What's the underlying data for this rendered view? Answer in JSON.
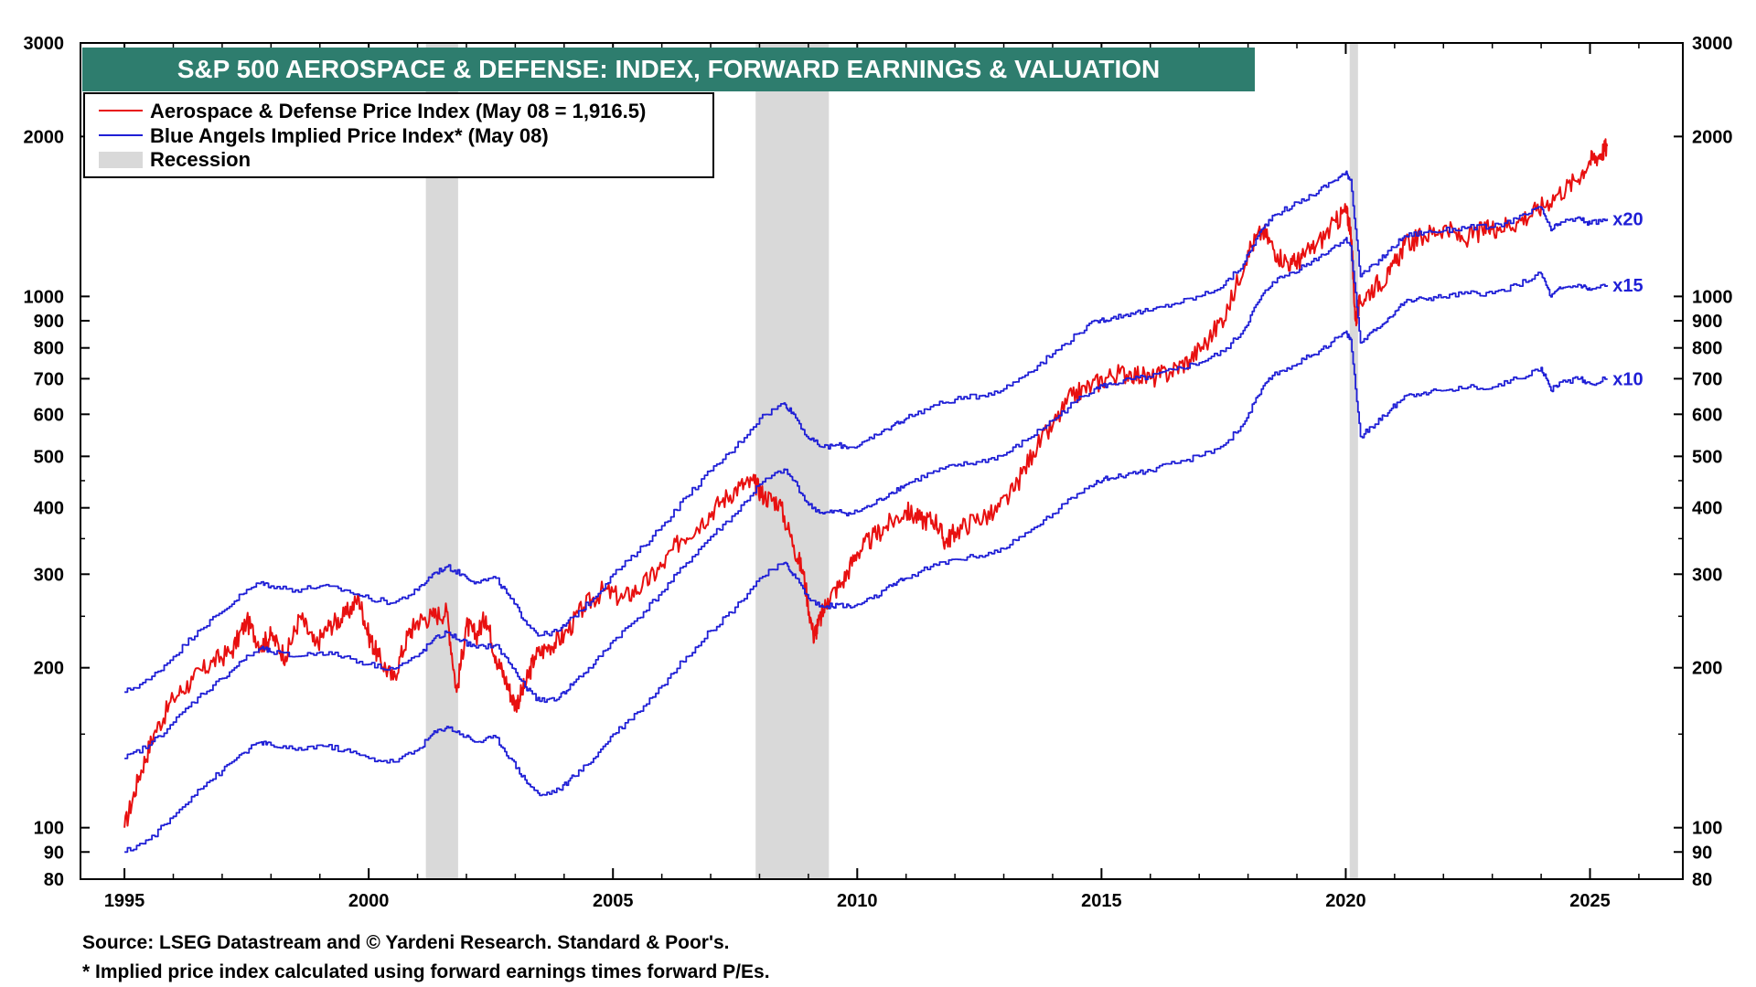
{
  "chart_data": {
    "type": "line",
    "title": "S&P 500 AEROSPACE & DEFENSE: INDEX, FORWARD EARNINGS & VALUATION",
    "y_scale": "log",
    "ylim": [
      80,
      3000
    ],
    "xlim": [
      1994.1,
      2026.9
    ],
    "y_ticks": [
      80,
      90,
      100,
      200,
      300,
      400,
      500,
      600,
      700,
      800,
      900,
      1000,
      2000,
      3000
    ],
    "y_tick_labels": [
      "80",
      "90",
      "100",
      "200",
      "300",
      "400",
      "500",
      "600",
      "700",
      "800",
      "900",
      "1000",
      "2000",
      "3000"
    ],
    "x_ticks": [
      1995,
      2000,
      2005,
      2010,
      2015,
      2020,
      2025
    ],
    "x_tick_labels": [
      "1995",
      "2000",
      "2005",
      "2010",
      "2015",
      "2020",
      "2025"
    ],
    "colors": {
      "price": "#e81010",
      "implied": "#1f1fd6",
      "recession": "#d9d9d9",
      "title_bg": "#2e7d6e"
    },
    "legend": [
      {
        "label": "Aerospace & Defense Price Index (May 08 = 1,916.5)",
        "kind": "line",
        "color": "#e81010"
      },
      {
        "label": "Blue Angels Implied Price Index* (May 08)",
        "kind": "line",
        "color": "#1f1fd6"
      },
      {
        "label": "Recession",
        "kind": "band",
        "color": "#d9d9d9"
      }
    ],
    "recessions": [
      {
        "start": 2001.17,
        "end": 2001.83
      },
      {
        "start": 2007.92,
        "end": 2009.42
      },
      {
        "start": 2020.08,
        "end": 2020.25
      }
    ],
    "series": [
      {
        "name": "Aerospace & Defense Price Index",
        "color": "#e81010",
        "x": [
          1995.0,
          1995.3,
          1995.6,
          1996.0,
          1996.4,
          1996.8,
          1997.2,
          1997.5,
          1997.8,
          1998.0,
          1998.3,
          1998.6,
          1998.9,
          1999.2,
          1999.5,
          1999.8,
          2000.0,
          2000.2,
          2000.5,
          2000.8,
          2001.0,
          2001.3,
          2001.6,
          2001.8,
          2002.0,
          2002.2,
          2002.4,
          2002.6,
          2002.8,
          2003.0,
          2003.2,
          2003.4,
          2003.7,
          2004.0,
          2004.4,
          2004.8,
          2005.2,
          2005.6,
          2006.0,
          2006.4,
          2006.8,
          2007.2,
          2007.6,
          2007.9,
          2008.1,
          2008.4,
          2008.7,
          2008.9,
          2009.1,
          2009.2,
          2009.4,
          2009.7,
          2010.0,
          2010.3,
          2010.6,
          2011.0,
          2011.3,
          2011.6,
          2011.8,
          2012.0,
          2012.4,
          2012.8,
          2013.2,
          2013.6,
          2014.0,
          2014.4,
          2014.8,
          2015.2,
          2015.6,
          2016.0,
          2016.4,
          2016.8,
          2017.2,
          2017.6,
          2018.0,
          2018.3,
          2018.6,
          2018.9,
          2019.1,
          2019.4,
          2019.8,
          2020.0,
          2020.1,
          2020.2,
          2020.3,
          2020.6,
          2020.9,
          2021.2,
          2021.6,
          2022.0,
          2022.4,
          2022.8,
          2023.1,
          2023.5,
          2023.9,
          2024.3,
          2024.7,
          2025.0,
          2025.2,
          2025.35
        ],
        "values": [
          100,
          125,
          150,
          175,
          190,
          205,
          215,
          245,
          220,
          230,
          210,
          250,
          220,
          240,
          250,
          270,
          230,
          210,
          190,
          230,
          245,
          250,
          255,
          180,
          240,
          230,
          250,
          210,
          190,
          170,
          185,
          210,
          220,
          230,
          260,
          280,
          270,
          285,
          310,
          350,
          375,
          410,
          440,
          445,
          420,
          410,
          340,
          300,
          230,
          240,
          270,
          290,
          330,
          350,
          370,
          395,
          380,
          380,
          345,
          360,
          380,
          390,
          430,
          510,
          570,
          650,
          680,
          710,
          720,
          700,
          720,
          760,
          830,
          950,
          1220,
          1330,
          1200,
          1150,
          1180,
          1250,
          1380,
          1450,
          1350,
          900,
          980,
          1050,
          1100,
          1250,
          1300,
          1350,
          1280,
          1330,
          1350,
          1380,
          1450,
          1550,
          1650,
          1800,
          1850,
          1916.5
        ]
      },
      {
        "name": "Blue Angels Implied Price Index x20",
        "color": "#1f1fd6",
        "label": "x20",
        "x": [
          1995.0,
          1995.5,
          1996.0,
          1996.5,
          1997.0,
          1997.4,
          1997.8,
          1998.0,
          1998.5,
          1999.0,
          1999.5,
          2000.0,
          2000.5,
          2001.0,
          2001.3,
          2001.6,
          2001.9,
          2002.2,
          2002.6,
          2002.9,
          2003.2,
          2003.5,
          2003.9,
          2004.2,
          2004.6,
          2005.0,
          2005.5,
          2006.0,
          2006.5,
          2007.0,
          2007.5,
          2008.0,
          2008.5,
          2008.7,
          2009.0,
          2009.3,
          2009.6,
          2009.9,
          2010.3,
          2010.7,
          2011.0,
          2011.5,
          2012.0,
          2012.5,
          2013.0,
          2013.5,
          2014.0,
          2014.5,
          2014.9,
          2015.2,
          2015.6,
          2016.0,
          2016.5,
          2017.0,
          2017.5,
          2017.9,
          2018.2,
          2018.5,
          2018.9,
          2019.3,
          2019.7,
          2020.0,
          2020.1,
          2020.3,
          2020.6,
          2020.9,
          2021.2,
          2021.6,
          2022.0,
          2022.5,
          2023.0,
          2023.5,
          2024.0,
          2024.2,
          2024.4,
          2024.8,
          2025.0,
          2025.35
        ],
        "values": [
          180,
          190,
          210,
          235,
          255,
          275,
          290,
          285,
          280,
          285,
          280,
          270,
          265,
          280,
          300,
          310,
          300,
          290,
          295,
          270,
          245,
          230,
          235,
          250,
          270,
          300,
          330,
          370,
          420,
          470,
          520,
          590,
          630,
          600,
          540,
          520,
          525,
          520,
          540,
          570,
          590,
          620,
          640,
          650,
          670,
          720,
          780,
          850,
          900,
          910,
          930,
          940,
          970,
          1000,
          1050,
          1150,
          1300,
          1420,
          1480,
          1550,
          1640,
          1710,
          1660,
          1090,
          1150,
          1220,
          1300,
          1320,
          1330,
          1350,
          1350,
          1400,
          1470,
          1330,
          1380,
          1400,
          1370,
          1400
        ]
      },
      {
        "name": "Blue Angels Implied Price Index x15",
        "color": "#1f1fd6",
        "label": "x15",
        "x": [
          1995.0,
          1995.5,
          1996.0,
          1996.5,
          1997.0,
          1997.4,
          1997.8,
          1998.0,
          1998.5,
          1999.0,
          1999.5,
          2000.0,
          2000.5,
          2001.0,
          2001.3,
          2001.6,
          2001.9,
          2002.2,
          2002.6,
          2002.9,
          2003.2,
          2003.5,
          2003.9,
          2004.2,
          2004.6,
          2005.0,
          2005.5,
          2006.0,
          2006.5,
          2007.0,
          2007.5,
          2008.0,
          2008.5,
          2008.7,
          2009.0,
          2009.3,
          2009.6,
          2009.9,
          2010.3,
          2010.7,
          2011.0,
          2011.5,
          2012.0,
          2012.5,
          2013.0,
          2013.5,
          2014.0,
          2014.5,
          2014.9,
          2015.2,
          2015.6,
          2016.0,
          2016.5,
          2017.0,
          2017.5,
          2017.9,
          2018.2,
          2018.5,
          2018.9,
          2019.3,
          2019.7,
          2020.0,
          2020.1,
          2020.3,
          2020.6,
          2020.9,
          2021.2,
          2021.6,
          2022.0,
          2022.5,
          2023.0,
          2023.5,
          2024.0,
          2024.2,
          2024.4,
          2024.8,
          2025.0,
          2025.35
        ],
        "values": [
          135,
          143,
          158,
          176,
          191,
          206,
          218,
          214,
          210,
          214,
          210,
          203,
          199,
          210,
          225,
          233,
          225,
          218,
          221,
          203,
          184,
          173,
          176,
          188,
          203,
          225,
          248,
          278,
          315,
          353,
          390,
          443,
          473,
          450,
          405,
          390,
          394,
          390,
          405,
          428,
          443,
          465,
          480,
          488,
          503,
          540,
          585,
          638,
          675,
          683,
          698,
          705,
          728,
          750,
          788,
          863,
          975,
          1065,
          1110,
          1163,
          1230,
          1283,
          1245,
          818,
          863,
          915,
          975,
          990,
          998,
          1013,
          1013,
          1050,
          1103,
          998,
          1035,
          1050,
          1028,
          1050
        ]
      },
      {
        "name": "Blue Angels Implied Price Index x10",
        "color": "#1f1fd6",
        "label": "x10",
        "x": [
          1995.0,
          1995.5,
          1996.0,
          1996.5,
          1997.0,
          1997.4,
          1997.8,
          1998.0,
          1998.5,
          1999.0,
          1999.5,
          2000.0,
          2000.5,
          2001.0,
          2001.3,
          2001.6,
          2001.9,
          2002.2,
          2002.6,
          2002.9,
          2003.2,
          2003.5,
          2003.9,
          2004.2,
          2004.6,
          2005.0,
          2005.5,
          2006.0,
          2006.5,
          2007.0,
          2007.5,
          2008.0,
          2008.5,
          2008.7,
          2009.0,
          2009.3,
          2009.6,
          2009.9,
          2010.3,
          2010.7,
          2011.0,
          2011.5,
          2012.0,
          2012.5,
          2013.0,
          2013.5,
          2014.0,
          2014.5,
          2014.9,
          2015.2,
          2015.6,
          2016.0,
          2016.5,
          2017.0,
          2017.5,
          2017.9,
          2018.2,
          2018.5,
          2018.9,
          2019.3,
          2019.7,
          2020.0,
          2020.1,
          2020.3,
          2020.6,
          2020.9,
          2021.2,
          2021.6,
          2022.0,
          2022.5,
          2023.0,
          2023.5,
          2024.0,
          2024.2,
          2024.4,
          2024.8,
          2025.0,
          2025.35
        ],
        "values": [
          90,
          95,
          105,
          118,
          128,
          138,
          145,
          143,
          140,
          143,
          140,
          135,
          133,
          140,
          150,
          155,
          150,
          145,
          148,
          135,
          123,
          115,
          118,
          125,
          135,
          150,
          165,
          185,
          210,
          235,
          260,
          295,
          315,
          300,
          270,
          260,
          263,
          260,
          270,
          285,
          295,
          310,
          320,
          325,
          335,
          360,
          390,
          425,
          450,
          455,
          465,
          470,
          485,
          500,
          525,
          575,
          650,
          710,
          740,
          775,
          820,
          855,
          830,
          545,
          575,
          610,
          650,
          660,
          665,
          675,
          675,
          700,
          735,
          665,
          690,
          700,
          685,
          700
        ]
      }
    ]
  },
  "footer": {
    "source": "Source: LSEG Datastream and © Yardeni Research. Standard & Poor's.",
    "note": "* Implied price index calculated using forward earnings times forward P/Es."
  }
}
